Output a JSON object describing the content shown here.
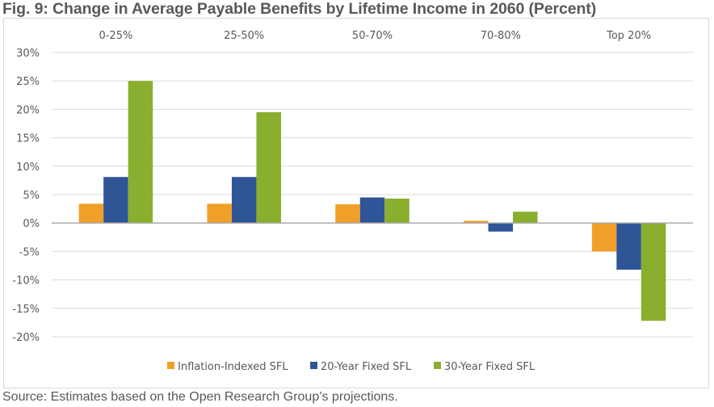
{
  "title": "Fig. 9: Change in Average Payable Benefits by Lifetime Income in 2060 (Percent)",
  "source": "Source: Estimates based on the Open Research Group’s projections.",
  "chart_data": {
    "type": "bar",
    "title": "Fig. 9: Change in Average Payable Benefits by Lifetime Income in 2060 (Percent)",
    "xlabel": "",
    "ylabel": "",
    "categories": [
      "0-25%",
      "25-50%",
      "50-70%",
      "70-80%",
      "Top 20%"
    ],
    "category_axis_position": "top",
    "series": [
      {
        "name": "Inflation-Indexed SFL",
        "color": "#f0a028",
        "values": [
          3.4,
          3.4,
          3.3,
          0.4,
          -5.0
        ]
      },
      {
        "name": "20-Year Fixed SFL",
        "color": "#2f5597",
        "values": [
          8.1,
          8.1,
          4.5,
          -1.5,
          -8.2
        ]
      },
      {
        "name": "30-Year Fixed SFL",
        "color": "#8aaf2e",
        "values": [
          25.0,
          19.5,
          4.3,
          2.0,
          -17.2
        ]
      }
    ],
    "ylim": [
      -20,
      30
    ],
    "yticks": [
      30,
      25,
      20,
      15,
      10,
      5,
      0,
      -5,
      -10,
      -15,
      -20
    ],
    "ytick_labels": [
      "30%",
      "25%",
      "20%",
      "15%",
      "10%",
      "5%",
      "0%",
      "-5%",
      "-10%",
      "-15%",
      "-20%"
    ],
    "grid": true,
    "legend_position": "bottom"
  }
}
